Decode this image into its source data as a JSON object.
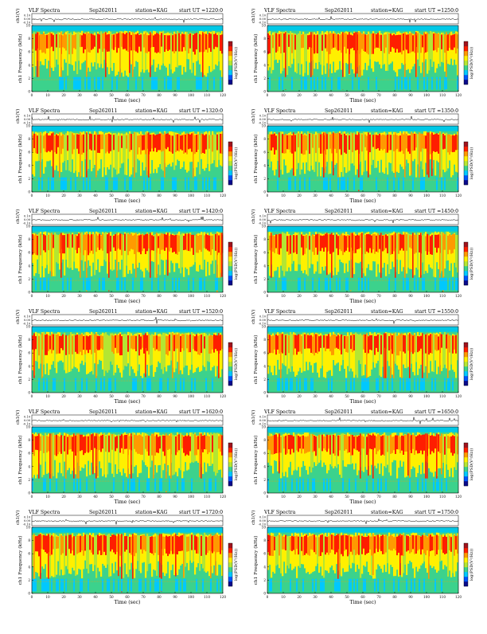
{
  "colors": {
    "spectrogram_scale": [
      "#0a0a8c",
      "#0055ff",
      "#00c8ff",
      "#3cd28c",
      "#b4e632",
      "#fff000",
      "#ff9a00",
      "#ff1e00",
      "#a0141e"
    ],
    "background_band": "#00c8e6",
    "waveform": "#000000"
  },
  "chart_data": [
    {
      "type": "heatmap",
      "title": "VLF Spectra",
      "date": "Sep262011",
      "station": "station=KAG",
      "start": "start UT =1220:0",
      "ylabel_top": "ch1(V)",
      "yticks_top": [
        "0.10",
        "0.00",
        "-0.10"
      ],
      "ylabel": "ch1 Frequency (kHz)",
      "ylim": [
        0,
        10
      ],
      "yticks": [
        "0",
        "2",
        "4",
        "6",
        "8",
        "10"
      ],
      "xlabel": "Time (sec)",
      "xlim": [
        0,
        120
      ],
      "xticks": [
        "0",
        "10",
        "20",
        "30",
        "40",
        "50",
        "60",
        "70",
        "80",
        "90",
        "100",
        "110",
        "120"
      ],
      "colorbar_label": "log(PSD(V²/Hz))"
    },
    {
      "type": "heatmap",
      "title": "VLF Spectra",
      "date": "Sep262011",
      "station": "station=KAG",
      "start": "start UT =1250:0",
      "ylabel_top": "ch1(V)",
      "yticks_top": [
        "0.10",
        "0.00",
        "-0.10"
      ],
      "ylabel": "ch1 Frequency (kHz)",
      "ylim": [
        0,
        10
      ],
      "yticks": [
        "0",
        "2",
        "4",
        "6",
        "8",
        "10"
      ],
      "xlabel": "Time (sec)",
      "xlim": [
        0,
        120
      ],
      "xticks": [
        "0",
        "10",
        "20",
        "30",
        "40",
        "50",
        "60",
        "70",
        "80",
        "90",
        "100",
        "110",
        "120"
      ],
      "colorbar_label": "log(PSD(V²/Hz))"
    },
    {
      "type": "heatmap",
      "title": "VLF Spectra",
      "date": "Sep262011",
      "station": "station=KAG",
      "start": "start UT =1320:0",
      "ylabel_top": "ch1(V)",
      "yticks_top": [
        "0.10",
        "0.00",
        "-0.10"
      ],
      "ylabel": "ch1 Frequency (kHz)",
      "ylim": [
        0,
        10
      ],
      "yticks": [
        "0",
        "2",
        "4",
        "6",
        "8",
        "10"
      ],
      "xlabel": "Time (sec)",
      "xlim": [
        0,
        120
      ],
      "xticks": [
        "0",
        "10",
        "20",
        "30",
        "40",
        "50",
        "60",
        "70",
        "80",
        "90",
        "100",
        "110",
        "120"
      ],
      "colorbar_label": "log(PSD(V²/Hz))"
    },
    {
      "type": "heatmap",
      "title": "VLF Spectra",
      "date": "Sep262011",
      "station": "station=KAG",
      "start": "start UT =1350:0",
      "ylabel_top": "ch1(V)",
      "yticks_top": [
        "0.10",
        "0.00",
        "-0.10"
      ],
      "ylabel": "ch1 Frequency (kHz)",
      "ylim": [
        0,
        10
      ],
      "yticks": [
        "0",
        "2",
        "4",
        "6",
        "8",
        "10"
      ],
      "xlabel": "Time (sec)",
      "xlim": [
        0,
        120
      ],
      "xticks": [
        "0",
        "10",
        "20",
        "30",
        "40",
        "50",
        "60",
        "70",
        "80",
        "90",
        "100",
        "110",
        "120"
      ],
      "colorbar_label": "log(PSD(V²/Hz))"
    },
    {
      "type": "heatmap",
      "title": "VLF Spectra",
      "date": "Sep262011",
      "station": "station=KAG",
      "start": "start UT =1420:0",
      "ylabel_top": "ch1(V)",
      "yticks_top": [
        "0.10",
        "0.00",
        "-0.10"
      ],
      "ylabel": "ch1 Frequency (kHz)",
      "ylim": [
        0,
        10
      ],
      "yticks": [
        "0",
        "2",
        "4",
        "6",
        "8",
        "10"
      ],
      "xlabel": "Time (sec)",
      "xlim": [
        0,
        120
      ],
      "xticks": [
        "0",
        "10",
        "20",
        "30",
        "40",
        "50",
        "60",
        "70",
        "80",
        "90",
        "100",
        "110",
        "120"
      ],
      "colorbar_label": "log(PSD(V²/Hz))"
    },
    {
      "type": "heatmap",
      "title": "VLF Spectra",
      "date": "Sep262011",
      "station": "station=KAG",
      "start": "start UT =1450:0",
      "ylabel_top": "ch1(V)",
      "yticks_top": [
        "0.10",
        "0.00",
        "-0.10"
      ],
      "ylabel": "ch1 Frequency (kHz)",
      "ylim": [
        0,
        10
      ],
      "yticks": [
        "0",
        "2",
        "4",
        "6",
        "8",
        "10"
      ],
      "xlabel": "Time (sec)",
      "xlim": [
        0,
        120
      ],
      "xticks": [
        "0",
        "10",
        "20",
        "30",
        "40",
        "50",
        "60",
        "70",
        "80",
        "90",
        "100",
        "110",
        "120"
      ],
      "colorbar_label": "log(PSD(V²/Hz))"
    },
    {
      "type": "heatmap",
      "title": "VLF Spectra",
      "date": "Sep262011",
      "station": "station=KAG",
      "start": "start UT =1520:0",
      "ylabel_top": "ch1(V)",
      "yticks_top": [
        "0.10",
        "0.00",
        "-0.10"
      ],
      "ylabel": "ch1 Frequency (kHz)",
      "ylim": [
        0,
        10
      ],
      "yticks": [
        "0",
        "2",
        "4",
        "6",
        "8",
        "10"
      ],
      "xlabel": "Time (sec)",
      "xlim": [
        0,
        120
      ],
      "xticks": [
        "0",
        "10",
        "20",
        "30",
        "40",
        "50",
        "60",
        "70",
        "80",
        "90",
        "100",
        "110",
        "120"
      ],
      "colorbar_label": "log(PSD(V²/Hz))"
    },
    {
      "type": "heatmap",
      "title": "VLF Spectra",
      "date": "Sep262011",
      "station": "station=KAG",
      "start": "start UT =1550:0",
      "ylabel_top": "ch1(V)",
      "yticks_top": [
        "0.10",
        "0.00",
        "-0.10"
      ],
      "ylabel": "ch1 Frequency (kHz)",
      "ylim": [
        0,
        10
      ],
      "yticks": [
        "0",
        "2",
        "4",
        "6",
        "8",
        "10"
      ],
      "xlabel": "Time (sec)",
      "xlim": [
        0,
        120
      ],
      "xticks": [
        "0",
        "10",
        "20",
        "30",
        "40",
        "50",
        "60",
        "70",
        "80",
        "90",
        "100",
        "110",
        "120"
      ],
      "colorbar_label": "log(PSD(V²/Hz))"
    },
    {
      "type": "heatmap",
      "title": "VLF Spectra",
      "date": "Sep262011",
      "station": "station=KAG",
      "start": "start UT =1620:0",
      "ylabel_top": "ch1(V)",
      "yticks_top": [
        "0.10",
        "0.00",
        "-0.10"
      ],
      "ylabel": "ch1 Frequency (kHz)",
      "ylim": [
        0,
        10
      ],
      "yticks": [
        "0",
        "2",
        "4",
        "6",
        "8",
        "10"
      ],
      "xlabel": "Time (sec)",
      "xlim": [
        0,
        120
      ],
      "xticks": [
        "0",
        "10",
        "20",
        "30",
        "40",
        "50",
        "60",
        "70",
        "80",
        "90",
        "100",
        "110",
        "120"
      ],
      "colorbar_label": "log(PSD(V²/Hz))"
    },
    {
      "type": "heatmap",
      "title": "VLF Spectra",
      "date": "Sep262011",
      "station": "station=KAG",
      "start": "start UT =1650:0",
      "ylabel_top": "ch1(V)",
      "yticks_top": [
        "0.10",
        "0.00",
        "-0.10"
      ],
      "ylabel": "ch1 Frequency (kHz)",
      "ylim": [
        0,
        10
      ],
      "yticks": [
        "0",
        "2",
        "4",
        "6",
        "8",
        "10"
      ],
      "xlabel": "Time (sec)",
      "xlim": [
        0,
        120
      ],
      "xticks": [
        "0",
        "10",
        "20",
        "30",
        "40",
        "50",
        "60",
        "70",
        "80",
        "90",
        "100",
        "110",
        "120"
      ],
      "colorbar_label": "log(PSD(V²/Hz))"
    },
    {
      "type": "heatmap",
      "title": "VLF Spectra",
      "date": "Sep262011",
      "station": "station=KAG",
      "start": "start UT =1720:0",
      "ylabel_top": "ch1(V)",
      "yticks_top": [
        "0.10",
        "0.00",
        "-0.10"
      ],
      "ylabel": "ch1 Frequency (kHz)",
      "ylim": [
        0,
        10
      ],
      "yticks": [
        "0",
        "2",
        "4",
        "6",
        "8",
        "10"
      ],
      "xlabel": "Time (sec)",
      "xlim": [
        0,
        120
      ],
      "xticks": [
        "0",
        "10",
        "20",
        "30",
        "40",
        "50",
        "60",
        "70",
        "80",
        "90",
        "100",
        "110",
        "120"
      ],
      "colorbar_label": "log(PSD(V²/Hz))"
    },
    {
      "type": "heatmap",
      "title": "VLF Spectra",
      "date": "Sep262011",
      "station": "station=KAG",
      "start": "start UT =1750:0",
      "ylabel_top": "ch1(V)",
      "yticks_top": [
        "0.10",
        "0.00",
        "-0.10"
      ],
      "ylabel": "ch1 Frequency (kHz)",
      "ylim": [
        0,
        10
      ],
      "yticks": [
        "0",
        "2",
        "4",
        "6",
        "8",
        "10"
      ],
      "xlabel": "Time (sec)",
      "xlim": [
        0,
        120
      ],
      "xticks": [
        "0",
        "10",
        "20",
        "30",
        "40",
        "50",
        "60",
        "70",
        "80",
        "90",
        "100",
        "110",
        "120"
      ],
      "colorbar_label": "log(PSD(V²/Hz))"
    }
  ]
}
